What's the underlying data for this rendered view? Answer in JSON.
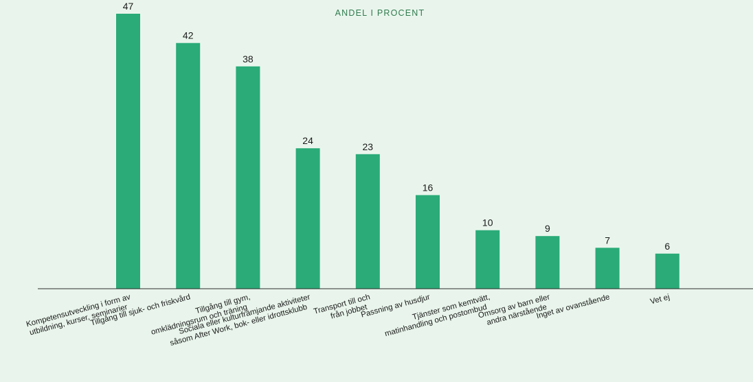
{
  "chart_data": {
    "type": "bar",
    "title": "ANDEL I PROCENT",
    "xlabel": "",
    "ylabel": "",
    "ylim": [
      0,
      47
    ],
    "grid": false,
    "legend": "none",
    "categories": [
      [
        "Kompetensutveckling i form av",
        "utbildning, kurser, seminarier"
      ],
      [
        "Tillgång till sjuk- och friskvård"
      ],
      [
        "Tillgång till gym,",
        "omklädningsrum och träning"
      ],
      [
        "Sociala eller kulturfrämjande aktiviteter",
        "såsom After Work, bok- eller idrottsklubb"
      ],
      [
        "Transport till och",
        "från jobbet"
      ],
      [
        "Passning av husdjur"
      ],
      [
        "Tjänster som kemtvätt,",
        "matinhandling och postombud"
      ],
      [
        "Omsorg av barn eller",
        "andra närstående"
      ],
      [
        "Inget av ovanstående"
      ],
      [
        "Vet ej"
      ]
    ],
    "values": [
      47,
      42,
      38,
      24,
      23,
      16,
      10,
      9,
      7,
      6
    ],
    "colors": {
      "bar": "#2aab78",
      "title": "#2f7a4e",
      "axis": "#2b2b2b",
      "background": "#e9f5ec",
      "text": "#1a1a1a"
    }
  }
}
